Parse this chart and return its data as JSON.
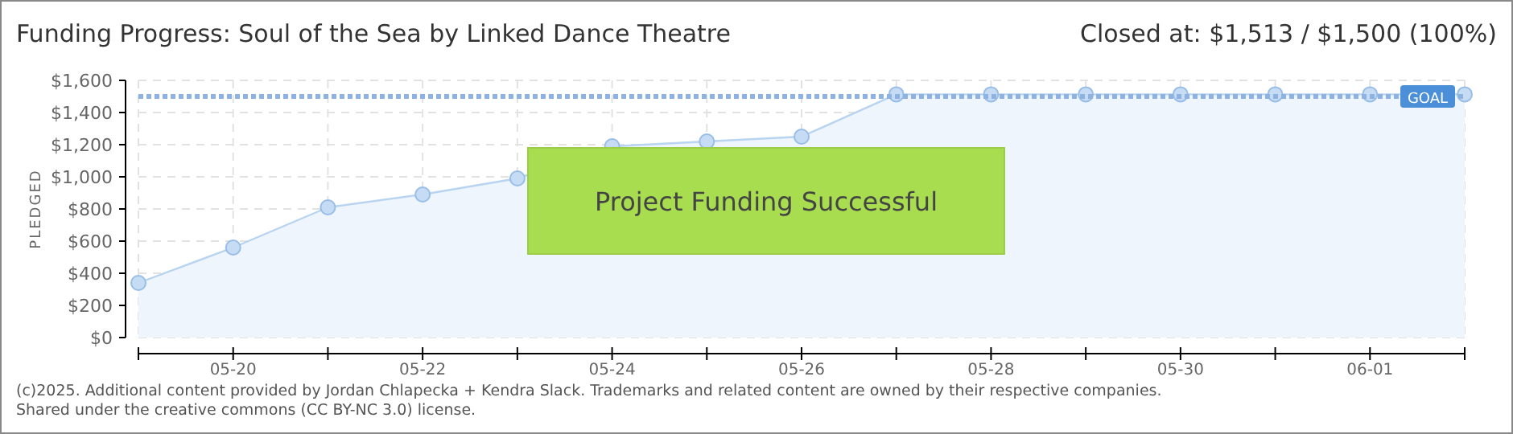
{
  "chart_data": {
    "type": "area",
    "title": "Funding Progress: Soul of the Sea by Linked Dance Theatre",
    "subtitle": "Closed at: $1,513 / $1,500 (100%)",
    "ylabel": "PLEDGED",
    "categories": [
      null,
      "05-20",
      null,
      "05-22",
      null,
      "05-24",
      null,
      "05-26",
      null,
      "05-28",
      null,
      "05-30",
      null,
      "06-01",
      null
    ],
    "series": [
      {
        "color": "#b8d4f0",
        "values": [
          340,
          560,
          810,
          890,
          990,
          1190,
          1220,
          1250,
          1513,
          1513,
          1513,
          1513,
          1513,
          1513,
          1513
        ]
      }
    ],
    "ylim": [
      0,
      1600
    ],
    "yticks": [
      {
        "value": 0,
        "label": "$0"
      },
      {
        "value": 200,
        "label": "$200"
      },
      {
        "value": 400,
        "label": "$400"
      },
      {
        "value": 600,
        "label": "$600"
      },
      {
        "value": 800,
        "label": "$800"
      },
      {
        "value": 1000,
        "label": "$1,000"
      },
      {
        "value": 1200,
        "label": "$1,200"
      },
      {
        "value": 1400,
        "label": "$1,400"
      },
      {
        "value": 1600,
        "label": "$1,600"
      }
    ],
    "grid": true,
    "marker": "circle",
    "ref_lines": [
      {
        "axis": "y",
        "value": 1500,
        "label": "GOAL",
        "color": "#8fb3e0",
        "line_style": "dotted"
      }
    ],
    "annotations": [
      "Project Funding Successful",
      "(c)2025. Additional content provided by Jordan Chlapecka + Kendra Slack. Trademarks and related content are owned by their respective companies.",
      "Shared under the creative commons (CC BY-NC 3.0) license."
    ]
  }
}
